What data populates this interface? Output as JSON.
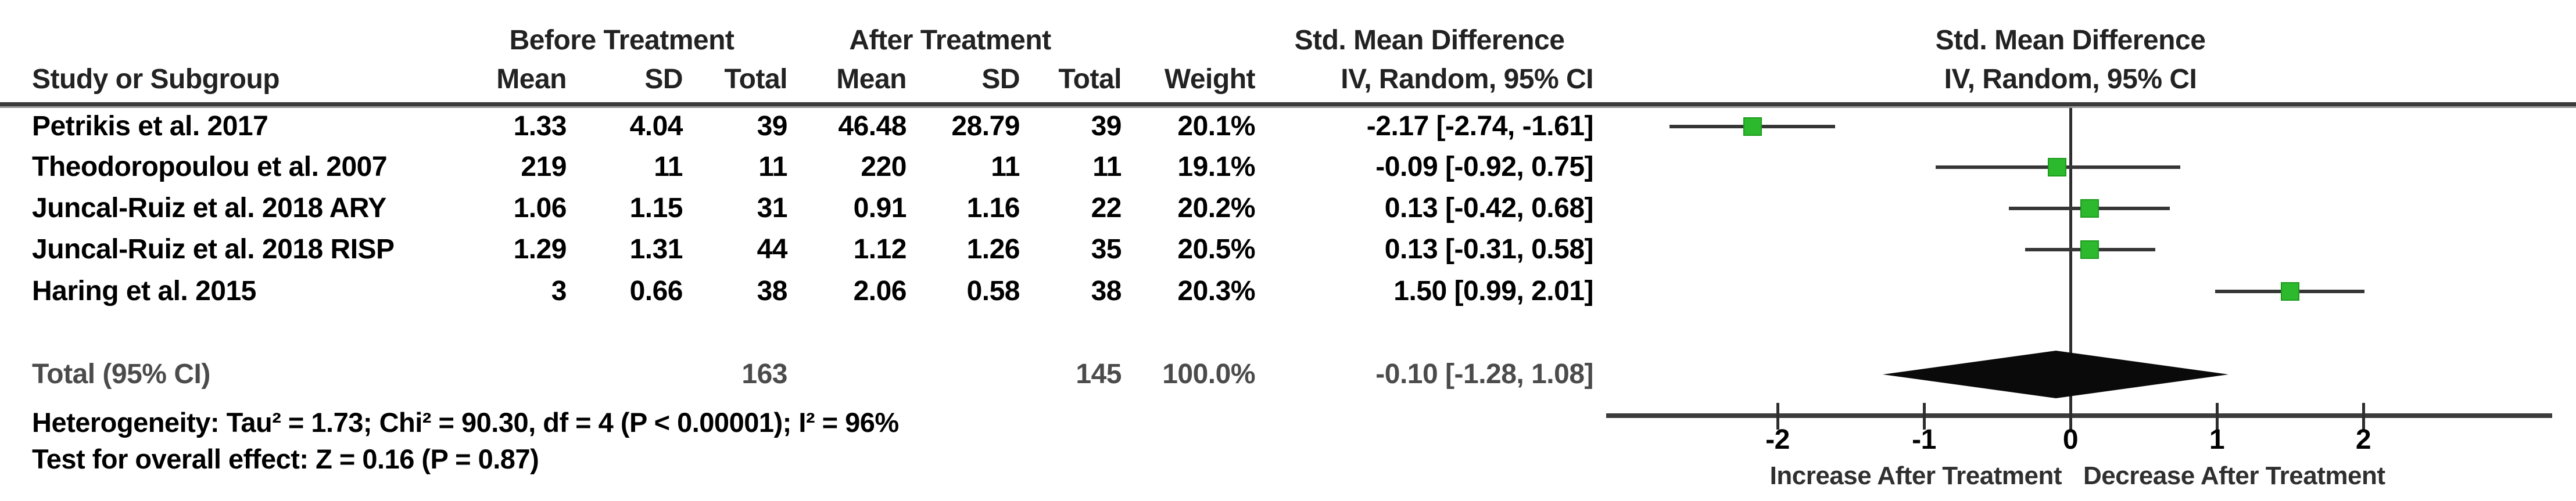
{
  "table": {
    "headers": {
      "group_before": "Before Treatment",
      "group_after": "After Treatment",
      "effect": "Std. Mean Difference",
      "study": "Study or Subgroup",
      "mean": "Mean",
      "sd": "SD",
      "total": "Total",
      "weight": "Weight",
      "method": "IV, Random, 95% CI"
    },
    "plot_headers": {
      "effect": "Std. Mean Difference",
      "method": "IV, Random, 95% CI"
    },
    "rows": [
      {
        "study": "Petrikis et al. 2017",
        "b_mean": "1.33",
        "b_sd": "4.04",
        "b_total": "39",
        "a_mean": "46.48",
        "a_sd": "28.79",
        "a_total": "39",
        "weight": "20.1%",
        "ci_text": "-2.17 [-2.74, -1.61]"
      },
      {
        "study": "Theodoropoulou et al. 2007",
        "b_mean": "219",
        "b_sd": "11",
        "b_total": "11",
        "a_mean": "220",
        "a_sd": "11",
        "a_total": "11",
        "weight": "19.1%",
        "ci_text": "-0.09 [-0.92, 0.75]"
      },
      {
        "study": "Juncal-Ruiz et al. 2018 ARY",
        "b_mean": "1.06",
        "b_sd": "1.15",
        "b_total": "31",
        "a_mean": "0.91",
        "a_sd": "1.16",
        "a_total": "22",
        "weight": "20.2%",
        "ci_text": "0.13 [-0.42, 0.68]"
      },
      {
        "study": "Juncal-Ruiz et al. 2018 RISP",
        "b_mean": "1.29",
        "b_sd": "1.31",
        "b_total": "44",
        "a_mean": "1.12",
        "a_sd": "1.26",
        "a_total": "35",
        "weight": "20.5%",
        "ci_text": "0.13 [-0.31, 0.58]"
      },
      {
        "study": "Haring et al. 2015",
        "b_mean": "3",
        "b_sd": "0.66",
        "b_total": "38",
        "a_mean": "2.06",
        "a_sd": "0.58",
        "a_total": "38",
        "weight": "20.3%",
        "ci_text": "1.50 [0.99, 2.01]"
      }
    ],
    "total_row": {
      "label": "Total (95% CI)",
      "b_total": "163",
      "a_total": "145",
      "weight": "100.0%",
      "ci_text": "-0.10 [-1.28, 1.08]"
    },
    "heterogeneity": "Heterogeneity: Tau² = 1.73; Chi² = 90.30, df = 4 (P < 0.00001); I² = 96%",
    "overall_effect": "Test for overall effect: Z = 0.16 (P = 0.87)"
  },
  "chart_data": {
    "type": "forest",
    "title": "Std. Mean Difference",
    "method_label": "IV, Random, 95% CI",
    "studies": [
      {
        "name": "Petrikis et al. 2017",
        "est": -2.17,
        "lo": -2.74,
        "hi": -1.61,
        "weight_pct": 20.1
      },
      {
        "name": "Theodoropoulou et al. 2007",
        "est": -0.09,
        "lo": -0.92,
        "hi": 0.75,
        "weight_pct": 19.1
      },
      {
        "name": "Juncal-Ruiz et al. 2018 ARY",
        "est": 0.13,
        "lo": -0.42,
        "hi": 0.68,
        "weight_pct": 20.2
      },
      {
        "name": "Juncal-Ruiz et al. 2018 RISP",
        "est": 0.13,
        "lo": -0.31,
        "hi": 0.58,
        "weight_pct": 20.5
      },
      {
        "name": "Haring et al. 2015",
        "est": 1.5,
        "lo": 0.99,
        "hi": 2.01,
        "weight_pct": 20.3
      }
    ],
    "overall": {
      "est": -0.1,
      "lo": -1.28,
      "hi": 1.08
    },
    "axis": {
      "min": -3.17,
      "max": 3.29,
      "ticks": [
        -2,
        -1,
        0,
        1,
        2
      ]
    },
    "x_labels": {
      "left": "Increase After Treatment",
      "right": "Decrease After Treatment"
    },
    "colors": {
      "marker": "#2db92d",
      "marker_border": "#1d9a1d",
      "ci_line": "#363636",
      "diamond": "#0a0a0a",
      "axis": "#3b3b3b"
    }
  }
}
